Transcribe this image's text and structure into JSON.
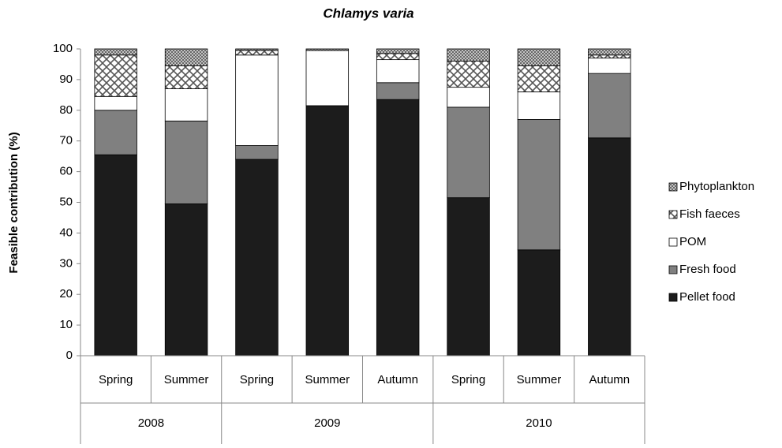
{
  "chart_data": {
    "type": "stacked-bar",
    "title": "Chlamys varia",
    "y_label": "Feasible contribution (%)",
    "groups": [
      {
        "name": "2008",
        "categories": [
          "Spring",
          "Summer"
        ]
      },
      {
        "name": "2009",
        "categories": [
          "Spring",
          "Summer",
          "Autumn"
        ]
      },
      {
        "name": "2010",
        "categories": [
          "Spring",
          "Summer",
          "Autumn"
        ]
      }
    ],
    "ylim": [
      0,
      100
    ],
    "yticks": [
      0,
      10,
      20,
      30,
      40,
      50,
      60,
      70,
      80,
      90,
      100
    ],
    "legend": "right",
    "series": [
      {
        "name": "Pellet food",
        "color": "#1c1c1c",
        "pattern": "solid",
        "values": [
          65.5,
          49.5,
          64,
          81.5,
          83.5,
          51.5,
          34.5,
          71
        ]
      },
      {
        "name": "Fresh food",
        "color": "#808080",
        "pattern": "solid",
        "values": [
          14.5,
          27,
          4.5,
          0,
          5.5,
          29.5,
          42.5,
          21
        ]
      },
      {
        "name": "POM",
        "color": "#ffffff",
        "pattern": "solid",
        "values": [
          4.5,
          10.5,
          29.5,
          18,
          7.5,
          6.5,
          9,
          5
        ]
      },
      {
        "name": "Fish faeces",
        "color": "#555555",
        "pattern": "crosshatch",
        "values": [
          13.5,
          7.5,
          1.5,
          0,
          2,
          8.5,
          8.5,
          1
        ]
      },
      {
        "name": "Phytoplankton",
        "color": "#555555",
        "pattern": "dense-crosshatch",
        "values": [
          2,
          5.5,
          0.5,
          0.5,
          1.5,
          4,
          5.5,
          2
        ]
      }
    ]
  }
}
